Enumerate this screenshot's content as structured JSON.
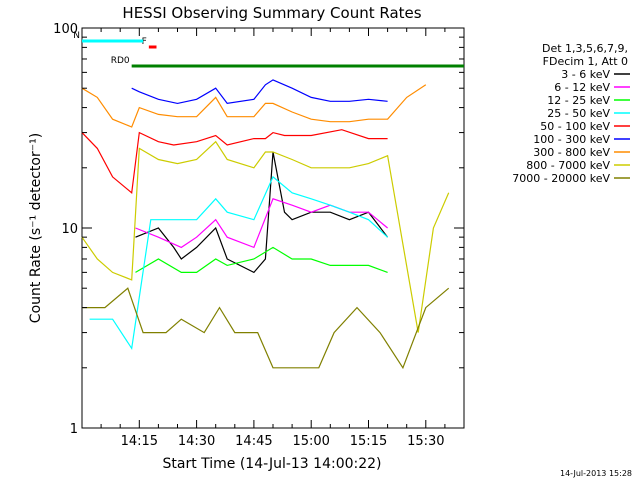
{
  "chart_data": {
    "type": "line",
    "title": "HESSI Observing Summary Count Rates",
    "xlabel": "Start Time (14-Jul-13 14:00:22)",
    "ylabel": "Count Rate (s⁻¹ detector⁻¹)",
    "yscale": "log",
    "ylim": [
      1,
      100
    ],
    "xlim_minutes": [
      0,
      100
    ],
    "x_tick_labels": [
      "14:15",
      "14:30",
      "14:45",
      "15:00",
      "15:15",
      "15:30"
    ],
    "x_tick_minutes": [
      15,
      30,
      45,
      60,
      75,
      90
    ],
    "y_tick_labels": [
      "1",
      "10",
      "100"
    ],
    "y_tick_values": [
      1,
      10,
      100
    ],
    "grid": false,
    "legend": {
      "placement": "right",
      "header": [
        "Det 1,3,5,6,7,9,",
        "FDecim 1, Att 0"
      ]
    },
    "flags": [
      {
        "label": "RD0",
        "start": 13,
        "end": 100,
        "color": "#008000"
      },
      {
        "label": "F",
        "start": 17.5,
        "end": 19.5,
        "color": "#ff0000"
      },
      {
        "label": "N",
        "start": 0,
        "end": 16,
        "color": "#00ffff"
      }
    ],
    "series": [
      {
        "name": "3 - 6 keV",
        "color": "#000000",
        "x": [
          14,
          20,
          24,
          26,
          30,
          35,
          38,
          45,
          48,
          50,
          53,
          55,
          60,
          65,
          70,
          75,
          80
        ],
        "y": [
          9,
          10,
          8,
          7,
          8,
          10,
          7,
          6,
          7,
          24,
          12,
          11,
          12,
          12,
          11,
          12,
          9
        ]
      },
      {
        "name": "6 - 12 keV",
        "color": "#ff00ff",
        "x": [
          14,
          20,
          26,
          30,
          35,
          38,
          45,
          50,
          55,
          60,
          65,
          70,
          75,
          80
        ],
        "y": [
          10,
          9,
          8,
          9,
          11,
          9,
          8,
          14,
          13,
          12,
          13,
          12,
          12,
          10
        ]
      },
      {
        "name": "12 - 25 keV",
        "color": "#00ff00",
        "x": [
          14,
          20,
          26,
          30,
          35,
          38,
          45,
          50,
          55,
          60,
          65,
          70,
          75,
          80
        ],
        "y": [
          6,
          7,
          6,
          6,
          7,
          6.5,
          7,
          8,
          7,
          7,
          6.5,
          6.5,
          6.5,
          6
        ]
      },
      {
        "name": "25 - 50 keV",
        "color": "#00ffff",
        "x": [
          2,
          8,
          13,
          18,
          26,
          30,
          35,
          38,
          45,
          50,
          55,
          60,
          65,
          70,
          75,
          80
        ],
        "y": [
          3.5,
          3.5,
          2.5,
          11,
          11,
          11,
          14,
          12,
          11,
          18,
          15,
          14,
          13,
          12,
          11,
          9
        ]
      },
      {
        "name": "50 - 100 keV",
        "color": "#ff0000",
        "x": [
          0,
          4,
          8,
          13,
          15,
          20,
          24,
          30,
          35,
          38,
          45,
          48,
          50,
          53,
          60,
          68,
          75,
          80
        ],
        "y": [
          30,
          25,
          18,
          15,
          30,
          27,
          26,
          27,
          29,
          26,
          28,
          28,
          30,
          29,
          29,
          31,
          28,
          28
        ]
      },
      {
        "name": "100 - 300 keV",
        "color": "#0000ff",
        "x": [
          13,
          15,
          20,
          25,
          30,
          35,
          38,
          45,
          48,
          50,
          55,
          60,
          65,
          70,
          75,
          80
        ],
        "y": [
          50,
          48,
          44,
          42,
          44,
          50,
          42,
          44,
          52,
          55,
          50,
          45,
          43,
          43,
          44,
          43
        ]
      },
      {
        "name": "300 - 800 keV",
        "color": "#ff8c00",
        "x": [
          0,
          4,
          8,
          13,
          15,
          20,
          25,
          30,
          35,
          38,
          45,
          48,
          50,
          55,
          60,
          65,
          70,
          75,
          80,
          85,
          90
        ],
        "y": [
          50,
          45,
          35,
          32,
          40,
          37,
          36,
          36,
          45,
          36,
          36,
          42,
          42,
          38,
          35,
          34,
          34,
          35,
          35,
          45,
          52
        ]
      },
      {
        "name": "800 - 7000 keV",
        "color": "#cccc00",
        "x": [
          0,
          4,
          8,
          13,
          15,
          20,
          25,
          30,
          35,
          38,
          45,
          48,
          50,
          55,
          60,
          65,
          70,
          75,
          80,
          88,
          92,
          96
        ],
        "y": [
          9,
          7,
          6,
          5.5,
          25,
          22,
          21,
          22,
          27,
          22,
          20,
          24,
          24,
          22,
          20,
          20,
          20,
          21,
          23,
          3,
          10,
          15
        ]
      },
      {
        "name": "7000 - 20000 keV",
        "color": "#808000",
        "x": [
          0,
          6,
          12,
          16,
          22,
          26,
          32,
          36,
          40,
          46,
          50,
          56,
          62,
          66,
          72,
          78,
          84,
          90,
          96
        ],
        "y": [
          4,
          4,
          5,
          3,
          3,
          3.5,
          3,
          4,
          3,
          3,
          2,
          2,
          2,
          3,
          4,
          3,
          2,
          4,
          5
        ]
      }
    ]
  },
  "footer": {
    "timestamp": "14-Jul-2013 15:28"
  }
}
